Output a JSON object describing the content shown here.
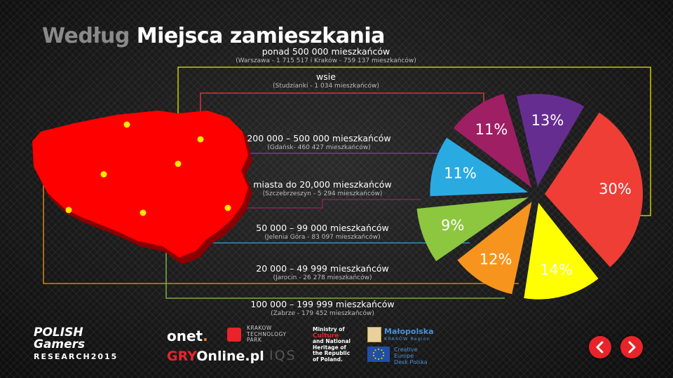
{
  "title_part1": "Według",
  "title_part2": "Miejsca zamieszkania",
  "labels": [
    {
      "main": "ponad 500 000 mieszkańców",
      "sub": "(Warszawa - 1 715 517 i Kraków - 759 137 mieszkańców)"
    },
    {
      "main": "wsie",
      "sub": "(Studzianki - 1 034 mieszkańców)"
    },
    {
      "main": "200 000 – 500 000 mieszkańców",
      "sub": "(Gdańsk- 460 427 mieszkańców)"
    },
    {
      "main": "miasta do 20,000 mieszkańców",
      "sub": "(Szczebrzeszyn - 5 294 mieszkańców)"
    },
    {
      "main": "50 000 – 99 000 mieszkańców",
      "sub": "(Jelenia Góra - 83 097 mieszkańców)"
    },
    {
      "main": "20 000 – 49 999 mieszkańców",
      "sub": "(Jarocin - 26 278 mieszkańców)"
    },
    {
      "main": "100 000 – 199 999 mieszkańców",
      "sub": "(Zabrze - 179 452 mieszkańców)"
    }
  ],
  "chart_data": {
    "type": "pie",
    "title": "Według Miejsca zamieszkania",
    "slices": [
      {
        "value": 30,
        "label": "30%",
        "color": "#ef3e36"
      },
      {
        "value": 14,
        "label": "14%",
        "color": "#ffff00"
      },
      {
        "value": 12,
        "label": "12%",
        "color": "#f7941d"
      },
      {
        "value": 9,
        "label": "9%",
        "color": "#8dc63f"
      },
      {
        "value": 11,
        "label": "11%",
        "color": "#29abe2"
      },
      {
        "value": 11,
        "label": "11%",
        "color": "#9e1f63"
      },
      {
        "value": 13,
        "label": "13%",
        "color": "#662d91"
      }
    ]
  },
  "map_color": "#ff0000",
  "logos": {
    "pg_line1": "POLISH",
    "pg_line2": "Gamers",
    "pg_line3": "RESEARCH",
    "pg_year": "2015",
    "onet": "onet",
    "onet_dot": ".",
    "gry_1": "GRY",
    "gry_2": "Online.pl",
    "ktp_1": "KRAKOW",
    "ktp_2": "TECHNOLOGY",
    "ktp_3": "PARK",
    "iqs": "IQS",
    "ministry_1": "Ministry of",
    "ministry_2": "Culture",
    "ministry_3": "and National",
    "ministry_4": "Heritage of",
    "ministry_5": "the Republic",
    "ministry_6": "of Poland.",
    "mlp_1": "Małopolska",
    "mlp_2": "KRAKÓW Region",
    "ce_1": "Creative",
    "ce_2": "Europe",
    "ce_3": "Desk Polska"
  },
  "nav": {
    "prev_icon": "chevron-left-icon",
    "next_icon": "chevron-right-icon"
  }
}
